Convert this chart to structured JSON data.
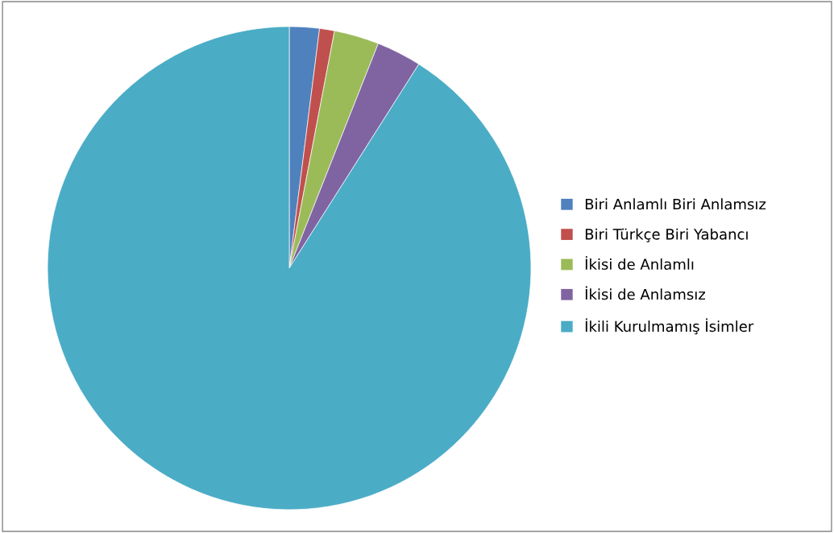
{
  "chart_data": {
    "type": "pie",
    "categories": [
      "Biri Anlamlı Biri Anlamsız",
      "Biri Türkçe Biri Yabancı",
      "İkisi de Anlamlı",
      "İkisi de Anlamsız",
      "İkili Kurulmamış İsimler"
    ],
    "values": [
      2,
      1,
      3,
      3,
      91
    ],
    "colors": [
      "#4f81bd",
      "#c0504d",
      "#9bbb59",
      "#8064a2",
      "#4bacc6"
    ],
    "legend": "right"
  }
}
